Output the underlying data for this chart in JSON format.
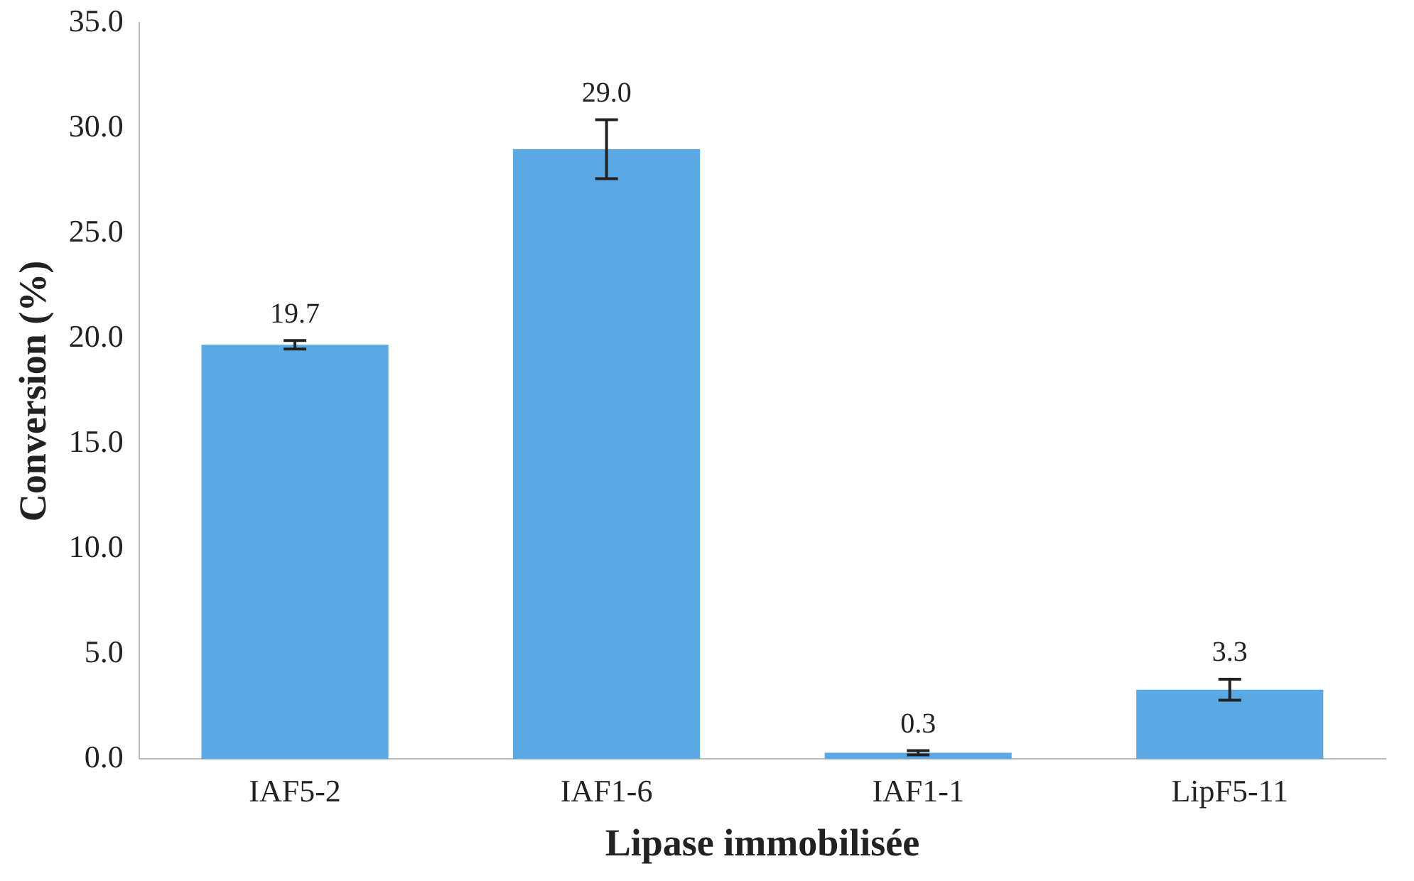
{
  "chart_data": {
    "type": "bar",
    "xlabel": "Lipase immobilisée",
    "ylabel": "Conversion (%)",
    "categories": [
      "IAF5-2",
      "IAF1-6",
      "IAF1-1",
      "LipF5-11"
    ],
    "values": [
      19.7,
      29.0,
      0.3,
      3.3
    ],
    "errors": [
      0.2,
      1.4,
      0.1,
      0.5
    ],
    "value_labels": [
      "19.7",
      "29.0",
      "0.3",
      "3.3"
    ],
    "color": "#5aa8e4",
    "grid": false,
    "legend": false,
    "ylim": [
      0,
      35
    ],
    "yticks": [
      {
        "value": 0,
        "label": "0.0"
      },
      {
        "value": 5,
        "label": "5.0"
      },
      {
        "value": 10,
        "label": "10.0"
      },
      {
        "value": 15,
        "label": "15.0"
      },
      {
        "value": 20,
        "label": "20.0"
      },
      {
        "value": 25,
        "label": "25.0"
      },
      {
        "value": 30,
        "label": "30.0"
      },
      {
        "value": 35,
        "label": "35.0"
      }
    ]
  }
}
